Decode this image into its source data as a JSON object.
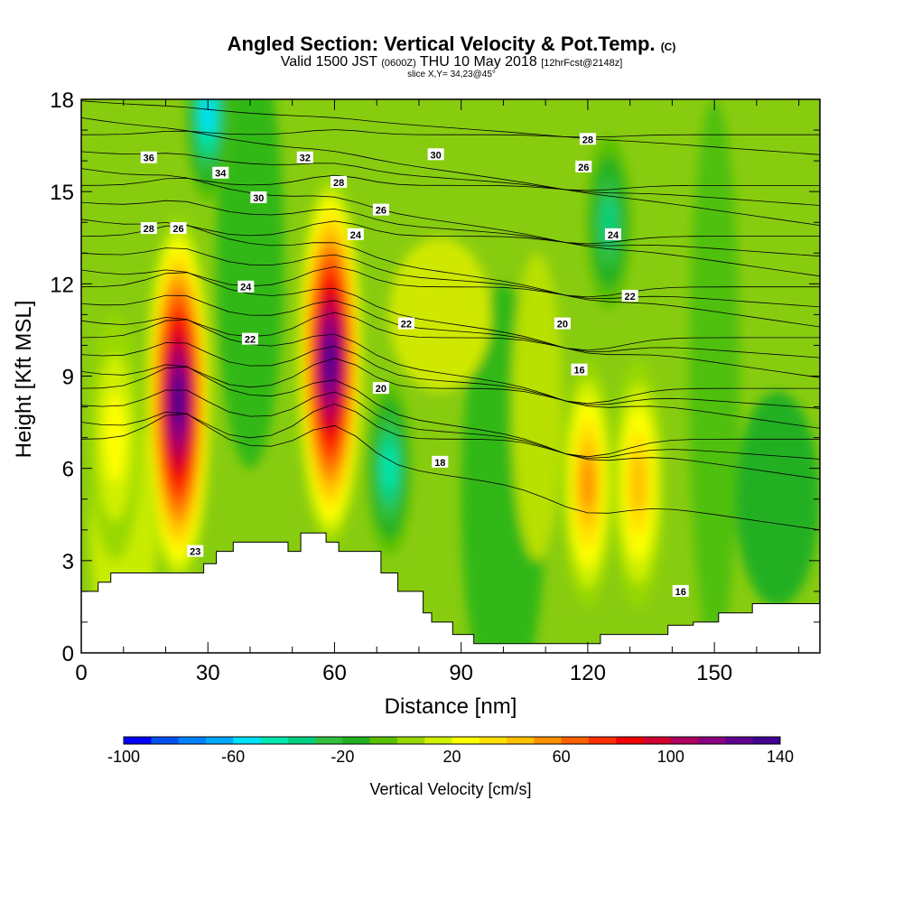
{
  "header": {
    "title": "Angled Section: Vertical Velocity & Pot.Temp.",
    "title_mark": "(C)",
    "subtitle_a": "Valid 1500 JST",
    "subtitle_b": "(0600Z)",
    "subtitle_c": "THU 10 May 2018",
    "subtitle_d": "[12hrFcst@2148z]",
    "slice": "slice X,Y= 34,23@45°"
  },
  "chart_data": {
    "type": "heatmap",
    "xlabel": "Distance [nm]",
    "ylabel": "Height [Kft MSL]",
    "xlim": [
      0,
      175
    ],
    "ylim": [
      0,
      18
    ],
    "x_ticks": [
      0,
      30,
      60,
      90,
      120,
      150
    ],
    "y_ticks": [
      0,
      3,
      6,
      9,
      12,
      15,
      18
    ],
    "colorbar": {
      "label": "Vertical Velocity [cm/s]",
      "min": -100,
      "max": 140,
      "step": 10,
      "tick_values": [
        -100,
        -60,
        -20,
        20,
        60,
        100,
        140
      ],
      "colors": [
        "#0000ff",
        "#0050f0",
        "#0080ff",
        "#00a8ff",
        "#00e0ff",
        "#00e6b0",
        "#00d080",
        "#30c040",
        "#20b020",
        "#58c000",
        "#98d800",
        "#d0f000",
        "#ffff00",
        "#ffe000",
        "#ffc000",
        "#ff9000",
        "#ff6000",
        "#ff3000",
        "#f00000",
        "#d00030",
        "#b00060",
        "#8a0080",
        "#600090",
        "#400090"
      ]
    },
    "updrafts": [
      {
        "x": 23,
        "z": 8.2,
        "peak": 140
      },
      {
        "x": 59,
        "z": 9.5,
        "peak": 140
      },
      {
        "x": 120,
        "z": 5.5,
        "peak": 55
      },
      {
        "x": 132,
        "z": 5.5,
        "peak": 45
      },
      {
        "x": 8,
        "z": 7,
        "peak": 25
      }
    ],
    "downdrafts": [
      {
        "x": 73,
        "z": 6,
        "peak": -50
      },
      {
        "x": 30,
        "z": 17.5,
        "peak": -55
      },
      {
        "x": 125,
        "z": 14,
        "peak": -35
      }
    ],
    "theta_contours": {
      "units": "C",
      "labels": [
        {
          "text": "36",
          "x": 16,
          "z": 16.1
        },
        {
          "text": "34",
          "x": 33,
          "z": 15.6
        },
        {
          "text": "32",
          "x": 53,
          "z": 16.1
        },
        {
          "text": "30",
          "x": 84,
          "z": 16.2
        },
        {
          "text": "28",
          "x": 120,
          "z": 16.7
        },
        {
          "text": "26",
          "x": 119,
          "z": 15.8
        },
        {
          "text": "30",
          "x": 42,
          "z": 14.8
        },
        {
          "text": "28",
          "x": 61,
          "z": 15.3
        },
        {
          "text": "26",
          "x": 71,
          "z": 14.4
        },
        {
          "text": "28",
          "x": 16,
          "z": 13.8
        },
        {
          "text": "26",
          "x": 23,
          "z": 13.8
        },
        {
          "text": "24",
          "x": 65,
          "z": 13.6
        },
        {
          "text": "24",
          "x": 126,
          "z": 13.6
        },
        {
          "text": "24",
          "x": 39,
          "z": 11.9
        },
        {
          "text": "22",
          "x": 130,
          "z": 11.6
        },
        {
          "text": "22",
          "x": 77,
          "z": 10.7
        },
        {
          "text": "20",
          "x": 114,
          "z": 10.7
        },
        {
          "text": "22",
          "x": 40,
          "z": 10.2
        },
        {
          "text": "16",
          "x": 118,
          "z": 9.2
        },
        {
          "text": "20",
          "x": 71,
          "z": 8.6
        },
        {
          "text": "18",
          "x": 85,
          "z": 6.2
        },
        {
          "text": "23",
          "x": 27,
          "z": 3.3
        },
        {
          "text": "16",
          "x": 142,
          "z": 2.0
        }
      ]
    },
    "terrain": [
      [
        0,
        2
      ],
      [
        4,
        2
      ],
      [
        4,
        2.3
      ],
      [
        7,
        2.3
      ],
      [
        7,
        2.6
      ],
      [
        29,
        2.6
      ],
      [
        29,
        2.9
      ],
      [
        32,
        2.9
      ],
      [
        32,
        3.3
      ],
      [
        36,
        3.3
      ],
      [
        36,
        3.6
      ],
      [
        49,
        3.6
      ],
      [
        49,
        3.3
      ],
      [
        52,
        3.3
      ],
      [
        52,
        3.9
      ],
      [
        58,
        3.9
      ],
      [
        58,
        3.6
      ],
      [
        61,
        3.6
      ],
      [
        61,
        3.3
      ],
      [
        71,
        3.3
      ],
      [
        71,
        2.6
      ],
      [
        75,
        2.6
      ],
      [
        75,
        2
      ],
      [
        81,
        2
      ],
      [
        81,
        1.3
      ],
      [
        83,
        1.3
      ],
      [
        83,
        1
      ],
      [
        88,
        1
      ],
      [
        88,
        0.6
      ],
      [
        93,
        0.6
      ],
      [
        93,
        0.3
      ],
      [
        123,
        0.3
      ],
      [
        123,
        0.6
      ],
      [
        129,
        0.6
      ],
      [
        129,
        0.6
      ],
      [
        139,
        0.6
      ],
      [
        139,
        0.9
      ],
      [
        145,
        0.9
      ],
      [
        145,
        1
      ],
      [
        151,
        1
      ],
      [
        151,
        1.3
      ],
      [
        159,
        1.3
      ],
      [
        159,
        1.6
      ],
      [
        175,
        1.6
      ]
    ]
  }
}
